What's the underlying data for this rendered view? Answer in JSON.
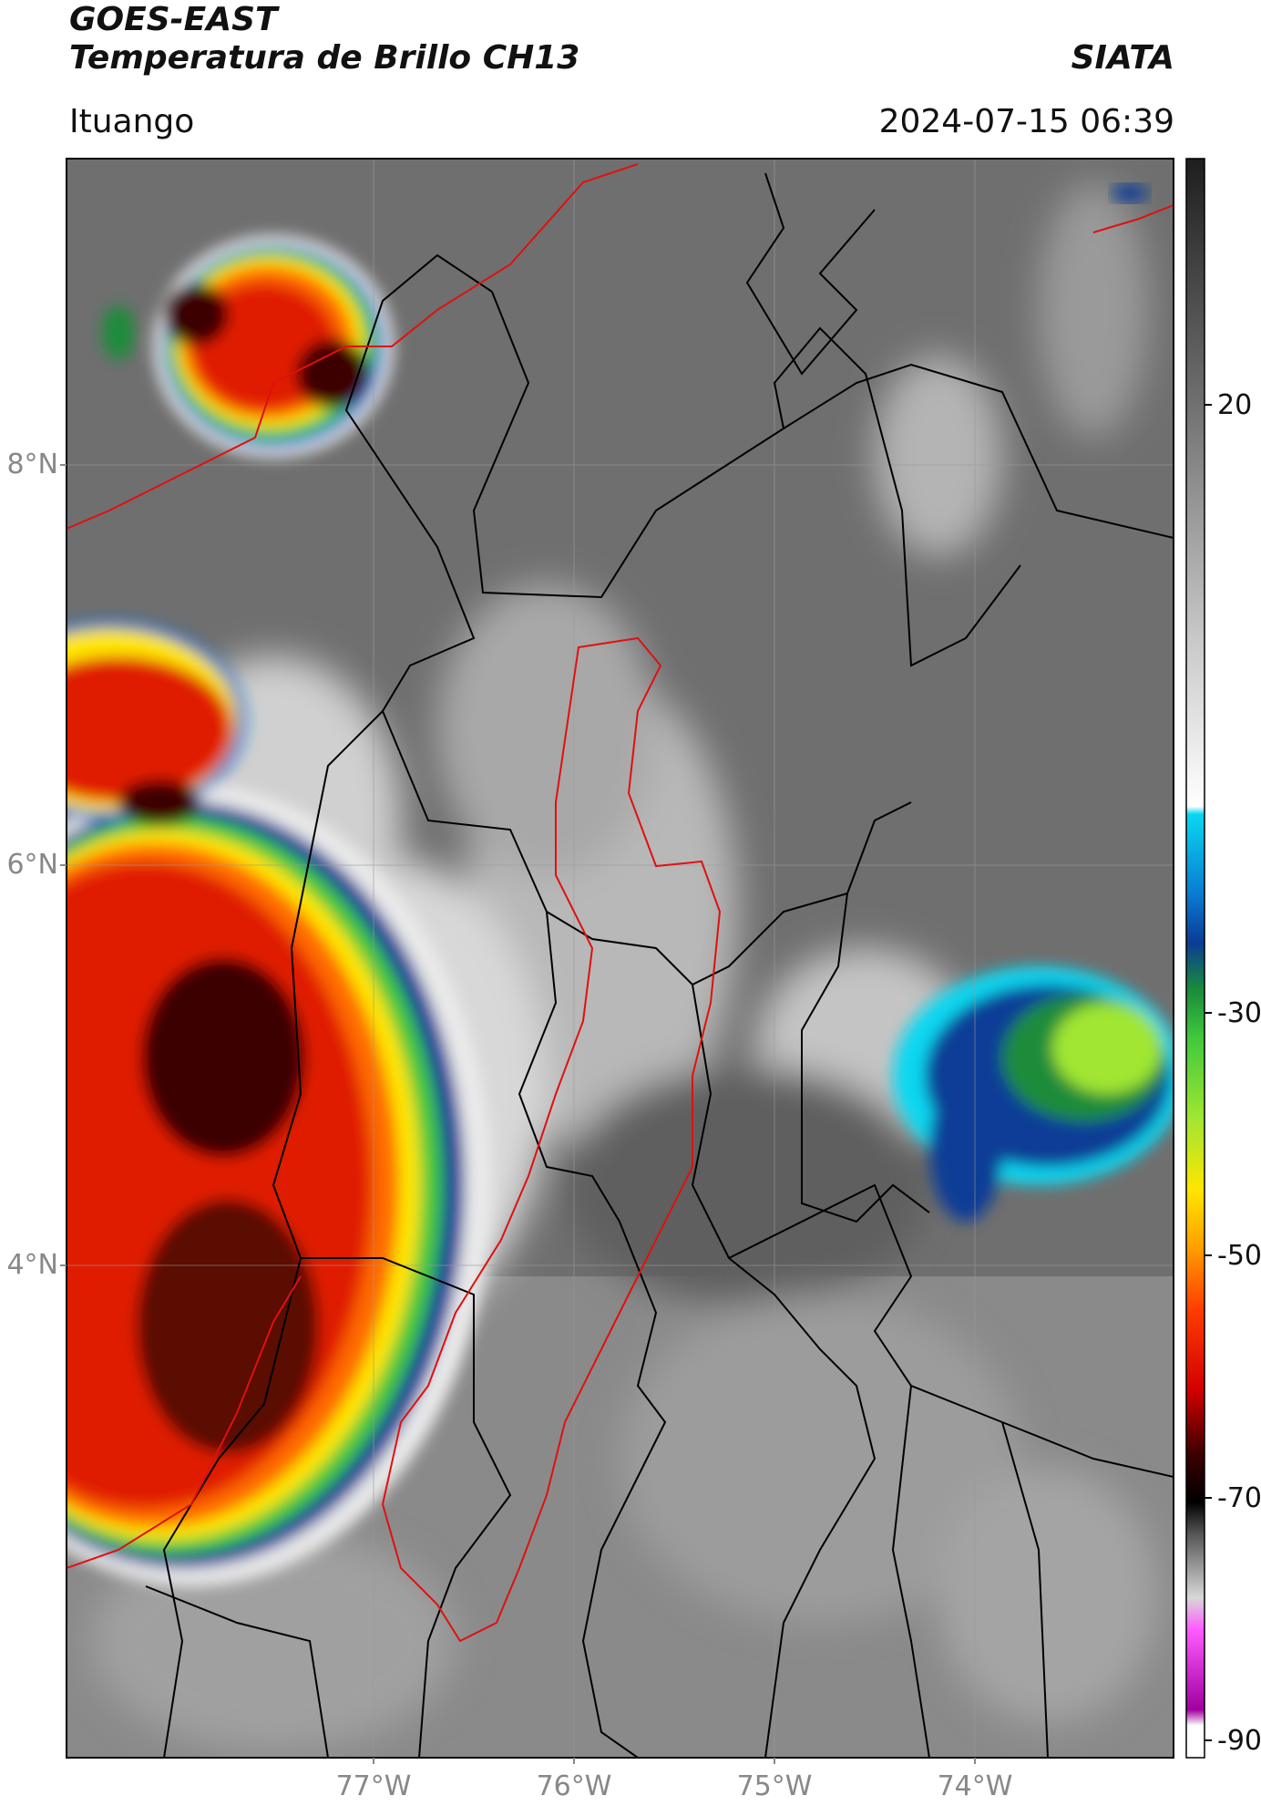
{
  "header": {
    "satellite": "GOES-EAST",
    "product": "Temperatura de Brillo CH13",
    "agency": "SIATA",
    "location": "Ituango",
    "datetime": "2024-07-15 06:39"
  },
  "axes": {
    "lat_labels": [
      "8°N",
      "6°N",
      "4°N"
    ],
    "lon_labels": [
      "77°W",
      "76°W",
      "75°W",
      "74°W"
    ]
  },
  "colorbar": {
    "ticks": [
      "20",
      "-30",
      "-50",
      "-70",
      "-90"
    ],
    "stops": [
      "#ffffff",
      "#f0f0f0",
      "#aaaaaa",
      "#555555",
      "#222222",
      "#0ad7f0",
      "#0a7bd2",
      "#0a3c96",
      "#1a8c3a",
      "#41c83c",
      "#a0e632",
      "#ffe600",
      "#ffa000",
      "#ff3c00",
      "#d20000",
      "#8c0000",
      "#3c0000",
      "#000000",
      "#888888",
      "#d8d8d8",
      "#ff5aff",
      "#a000a0",
      "#ffffff"
    ]
  },
  "colors": {
    "political_black": "#000000",
    "basin_red": "#e01010"
  }
}
